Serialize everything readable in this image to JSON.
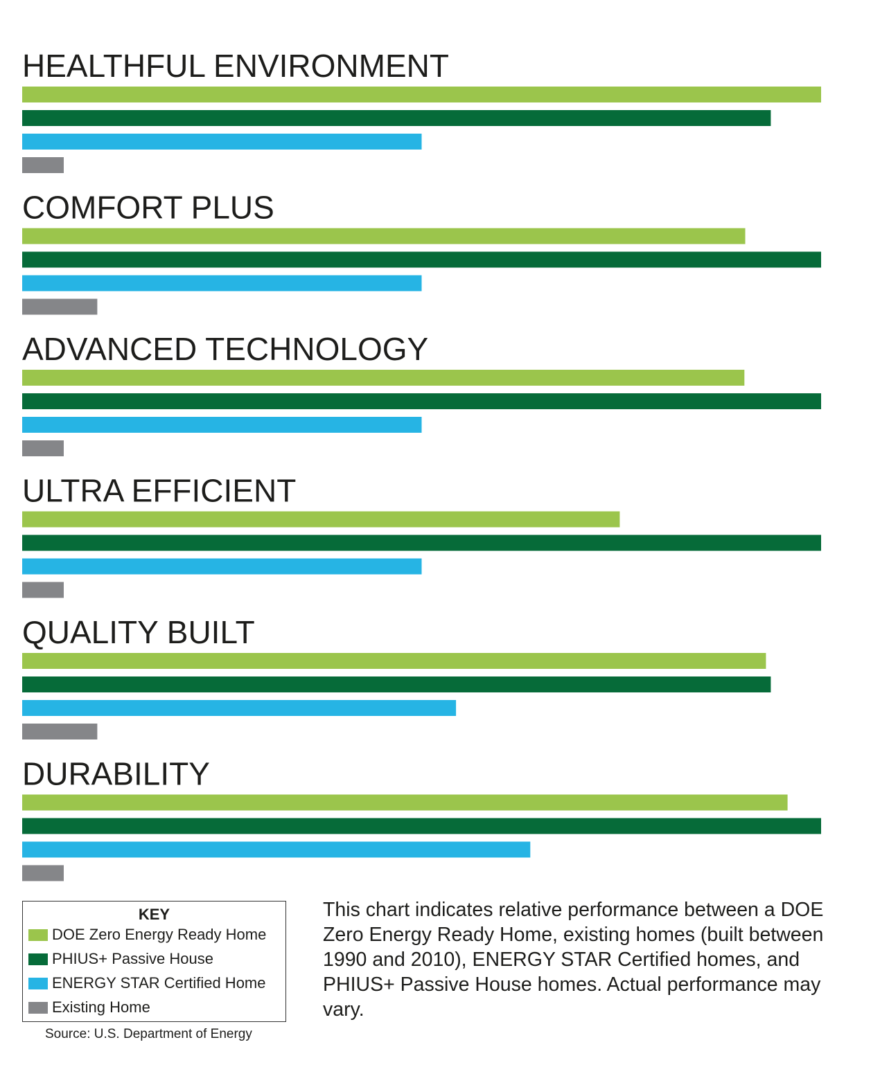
{
  "chart_data": {
    "type": "bar",
    "orientation": "horizontal",
    "categories": [
      "HEALTHFUL ENVIRONMENT",
      "COMFORT PLUS",
      "ADVANCED TECHNOLOGY",
      "ULTRA EFFICIENT",
      "QUALITY BUILT",
      "DURABILITY"
    ],
    "series": [
      {
        "name": "DOE Zero Energy Ready Home",
        "color": "#9bc54c",
        "values": [
          100,
          90.5,
          90.4,
          74.8,
          93.1,
          95.8
        ]
      },
      {
        "name": "PHIUS+ Passive House",
        "color": "#066b39",
        "values": [
          93.7,
          100,
          100,
          100,
          93.7,
          100
        ]
      },
      {
        "name": "ENERGY STAR Certified Home",
        "color": "#26b4e4",
        "values": [
          50,
          50,
          50,
          50,
          54.3,
          63.6
        ]
      },
      {
        "name": "Existing Home",
        "color": "#858689",
        "values": [
          5.2,
          9.4,
          5.2,
          5.2,
          9.4,
          5.2
        ]
      }
    ],
    "xlim": [
      0,
      100
    ],
    "axes_shown": false,
    "grid": false,
    "legend_placement": "bottom-left"
  },
  "key": {
    "title": "KEY",
    "items": [
      {
        "label": "DOE Zero Energy Ready Home",
        "color": "#9bc54c"
      },
      {
        "label": "PHIUS+ Passive House",
        "color": "#066b39"
      },
      {
        "label": "ENERGY STAR Certified Home",
        "color": "#26b4e4"
      },
      {
        "label": "Existing Home",
        "color": "#858689"
      }
    ]
  },
  "source": "Source: U.S. Department of Energy",
  "note": "This chart indicates relative performance between a DOE Zero Energy Ready Home, existing homes (built between 1990 and 2010), ENERGY STAR Certified homes, and PHIUS+ Passive House homes. Actual performance may vary."
}
